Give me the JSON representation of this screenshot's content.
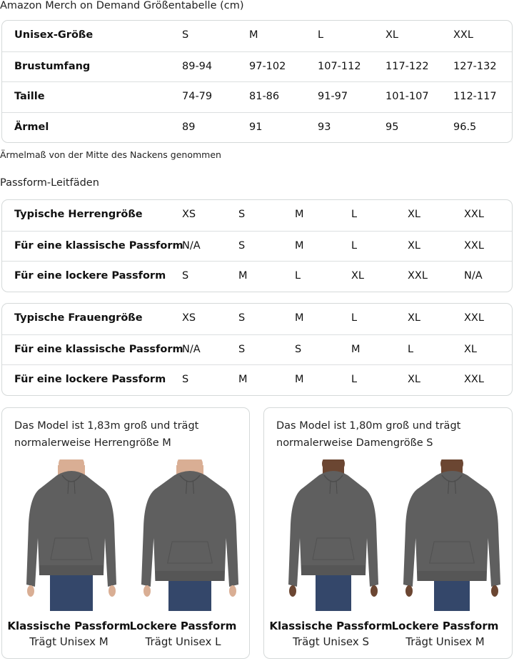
{
  "title": "Amazon Merch on Demand Größentabelle (cm)",
  "size_table": {
    "rows": [
      {
        "label": "Unisex-Größe",
        "values": [
          "S",
          "M",
          "L",
          "XL",
          "XXL"
        ]
      },
      {
        "label": "Brustumfang",
        "values": [
          "89-94",
          "97-102",
          "107-112",
          "117-122",
          "127-132"
        ]
      },
      {
        "label": "Taille",
        "values": [
          "74-79",
          "81-86",
          "91-97",
          "101-107",
          "112-117"
        ]
      },
      {
        "label": "Ärmel",
        "values": [
          "89",
          "91",
          "93",
          "95",
          "96.5"
        ]
      }
    ]
  },
  "note": "Ärmelmaß von der Mitte des Nackens genommen",
  "fit_title": "Passform-Leitfäden",
  "men_table": {
    "rows": [
      {
        "label": "Typische Herrengröße",
        "values": [
          "XS",
          "S",
          "M",
          "L",
          "XL",
          "XXL"
        ]
      },
      {
        "label": "Für eine klassische Passform",
        "values": [
          "N/A",
          "S",
          "M",
          "L",
          "XL",
          "XXL"
        ]
      },
      {
        "label": "Für eine lockere Passform",
        "values": [
          "S",
          "M",
          "L",
          "XL",
          "XXL",
          "N/A"
        ]
      }
    ]
  },
  "women_table": {
    "rows": [
      {
        "label": "Typische Frauengröße",
        "values": [
          "XS",
          "S",
          "M",
          "L",
          "XL",
          "XXL"
        ]
      },
      {
        "label": "Für eine klassische Passform",
        "values": [
          "N/A",
          "S",
          "S",
          "M",
          "L",
          "XL"
        ]
      },
      {
        "label": "Für eine lockere Passform",
        "values": [
          "S",
          "M",
          "M",
          "L",
          "XL",
          "XXL"
        ]
      }
    ]
  },
  "cards": [
    {
      "caption_line1": "Das Model ist 1,83m groß und trägt",
      "caption_line2": "normalerweise Herrengröße M",
      "figures": [
        {
          "fit": "Klassische Passform",
          "wears": "Trägt Unisex M"
        },
        {
          "fit": "Lockere Passform",
          "wears": "Trägt Unisex L"
        }
      ]
    },
    {
      "caption_line1": "Das Model ist 1,80m groß und trägt",
      "caption_line2": "normalerweise Damengröße S",
      "figures": [
        {
          "fit": "Klassische Passform",
          "wears": "Trägt Unisex S"
        },
        {
          "fit": "Lockere Passform",
          "wears": "Trägt Unisex M"
        }
      ]
    }
  ],
  "colors": {
    "hoodie": "#5f5f5f",
    "jeans": "#34476a",
    "border": "#d5d9d9"
  }
}
